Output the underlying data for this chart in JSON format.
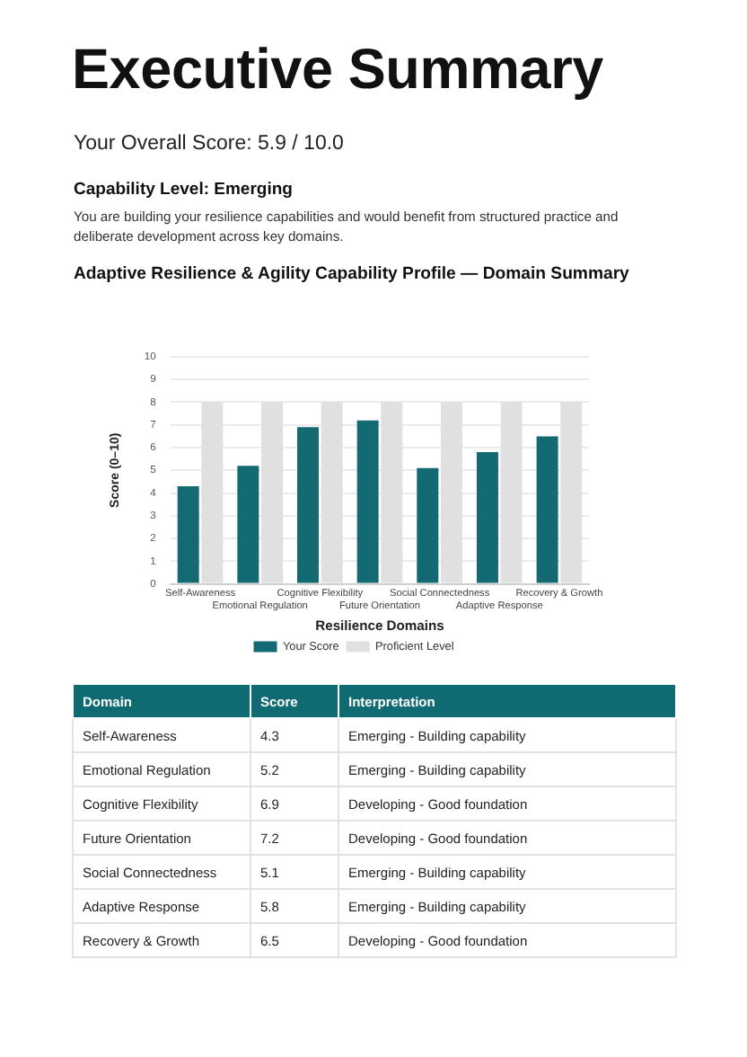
{
  "chart_data": [
    {
      "type": "bar",
      "title": "Adaptive Resilience & Agility Capability Profile — Domain Summary",
      "xlabel": "Resilience Domains",
      "ylabel": "Score (0–10)",
      "categories": [
        "Self-Awareness",
        "Emotional Regulation",
        "Cognitive Flexibility",
        "Future Orientation",
        "Social Connectedness",
        "Adaptive Response",
        "Recovery & Growth"
      ],
      "series": [
        {
          "name": "Your Score",
          "color": "#136a72",
          "values": [
            4.3,
            5.2,
            6.9,
            7.2,
            5.1,
            5.8,
            6.5
          ]
        },
        {
          "name": "Proficient Level",
          "color": "#e0e0e0",
          "values": [
            8,
            8,
            8,
            8,
            8,
            8,
            8
          ]
        }
      ],
      "ylim": [
        0,
        10
      ],
      "yticks": [
        0,
        1,
        2,
        3,
        4,
        5,
        6,
        7,
        8,
        9,
        10
      ],
      "grid": "y",
      "legend": "bottom",
      "annotations": [
        "Executive Summary",
        "Your Overall Score: 5.9 / 10.0",
        "Capability Level: Emerging",
        "You are building your resilience capabilities and would benefit from structured practice and deliberate development across key domains."
      ]
    },
    {
      "type": "other",
      "annotations": [
        "Domain",
        "Score",
        "Interpretation",
        "Self-Awareness",
        "4.3",
        "Emerging - Building capability",
        "Emotional Regulation",
        "5.2",
        "Emerging - Building capability",
        "Cognitive Flexibility",
        "6.9",
        "Developing - Good foundation",
        "Future Orientation",
        "7.2",
        "Developing - Good foundation",
        "Social Connectedness",
        "5.1",
        "Emerging - Building capability",
        "Adaptive Response",
        "5.8",
        "Emerging - Building capability",
        "Recovery & Growth",
        "6.5",
        "Developing - Good foundation"
      ]
    }
  ]
}
